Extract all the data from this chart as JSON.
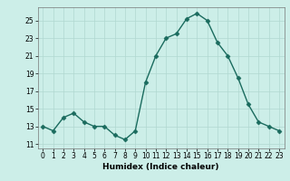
{
  "x": [
    0,
    1,
    2,
    3,
    4,
    5,
    6,
    7,
    8,
    9,
    10,
    11,
    12,
    13,
    14,
    15,
    16,
    17,
    18,
    19,
    20,
    21,
    22,
    23
  ],
  "y": [
    13,
    12.5,
    14,
    14.5,
    13.5,
    13,
    13,
    12,
    11.5,
    12.5,
    18,
    21,
    23,
    23.5,
    25.2,
    25.8,
    25,
    22.5,
    21,
    18.5,
    15.5,
    13.5,
    13,
    12.5
  ],
  "line_color": "#1a6b5e",
  "marker_color": "#1a6b5e",
  "bg_color": "#cceee8",
  "grid_color": "#b0d8d0",
  "xlabel": "Humidex (Indice chaleur)",
  "xlim": [
    -0.5,
    23.5
  ],
  "ylim": [
    10.5,
    26.5
  ],
  "yticks": [
    11,
    13,
    15,
    17,
    19,
    21,
    23,
    25
  ],
  "xticks": [
    0,
    1,
    2,
    3,
    4,
    5,
    6,
    7,
    8,
    9,
    10,
    11,
    12,
    13,
    14,
    15,
    16,
    17,
    18,
    19,
    20,
    21,
    22,
    23
  ],
  "xlabel_fontsize": 6.5,
  "tick_fontsize": 5.5,
  "line_width": 1.0,
  "marker_size": 2.5
}
